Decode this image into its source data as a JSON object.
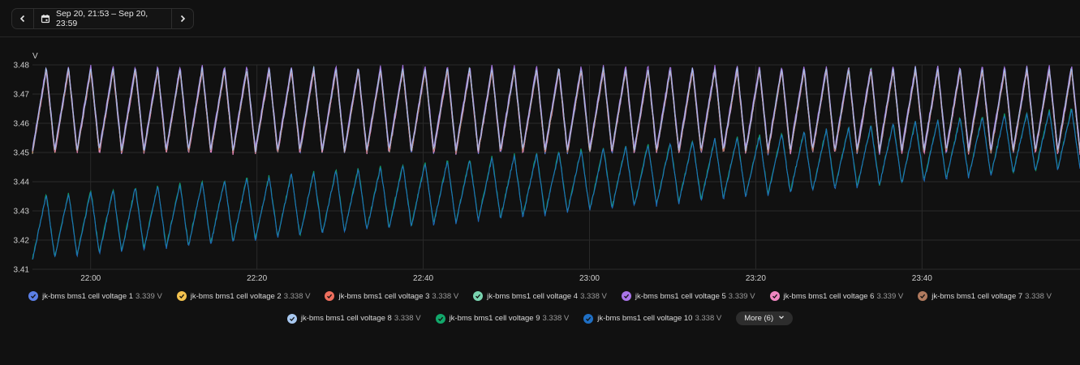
{
  "header": {
    "date_range": "Sep 20, 21:53 – Sep 20, 23:59"
  },
  "colors": {
    "background": "#111111",
    "grid": "#2a2a2a",
    "axis_text": "#d0d0d0"
  },
  "chart_data": {
    "type": "line",
    "ylabel": "V",
    "ylim": [
      3.41,
      3.48
    ],
    "y_ticks": [
      "3.48",
      "3.47",
      "3.46",
      "3.45",
      "3.44",
      "3.43",
      "3.42",
      "3.41"
    ],
    "x_range": [
      "21:53",
      "23:59"
    ],
    "x_ticks": [
      "22:00",
      "22:20",
      "22:40",
      "23:00",
      "23:20",
      "23:40"
    ],
    "grid": true,
    "legend_position": "bottom",
    "pattern": "sawtooth ~47 cycles; high group 3.449–3.479 V; low group rising 3.413–3.437 V at 21:53 to 3.445–3.468 V at 23:59",
    "series": [
      {
        "name": "jk-bms bms1 cell voltage 1",
        "value": "3.339 V",
        "color": "#5b7fe6",
        "group": "high"
      },
      {
        "name": "jk-bms bms1 cell voltage 2",
        "value": "3.338 V",
        "color": "#f2c14e",
        "group": "high"
      },
      {
        "name": "jk-bms bms1 cell voltage 3",
        "value": "3.338 V",
        "color": "#ef6f5e",
        "group": "high"
      },
      {
        "name": "jk-bms bms1 cell voltage 4",
        "value": "3.338 V",
        "color": "#79d4b0",
        "group": "high"
      },
      {
        "name": "jk-bms bms1 cell voltage 5",
        "value": "3.339 V",
        "color": "#a974e8",
        "group": "high"
      },
      {
        "name": "jk-bms bms1 cell voltage 6",
        "value": "3.339 V",
        "color": "#ef86c0",
        "group": "high"
      },
      {
        "name": "jk-bms bms1 cell voltage 7",
        "value": "3.338 V",
        "color": "#b07a5e",
        "group": "high"
      },
      {
        "name": "jk-bms bms1 cell voltage 8",
        "value": "3.338 V",
        "color": "#a8c8f0",
        "group": "high"
      },
      {
        "name": "jk-bms bms1 cell voltage 9",
        "value": "3.338 V",
        "color": "#12a86b",
        "group": "low"
      },
      {
        "name": "jk-bms bms1 cell voltage 10",
        "value": "3.338 V",
        "color": "#1f6fc4",
        "group": "low"
      }
    ]
  },
  "legend": {
    "more_label": "More (6)"
  }
}
